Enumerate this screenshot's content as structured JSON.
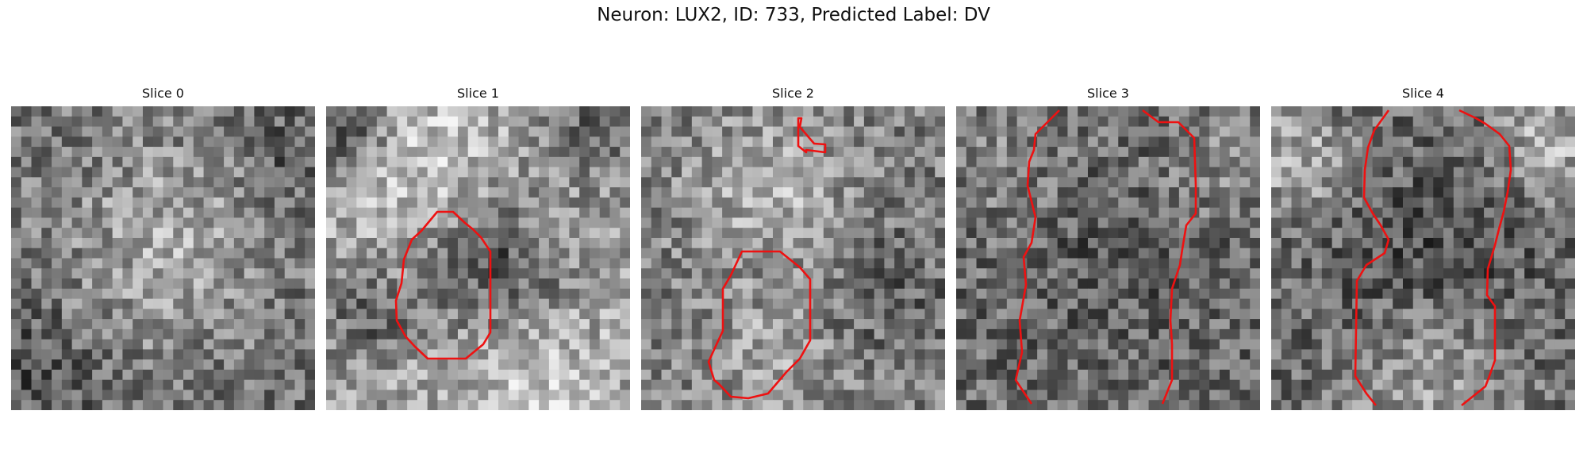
{
  "figure": {
    "title": "Neuron: LUX2, ID: 733, Predicted Label: DV"
  },
  "colors": {
    "contour": "#ee1111",
    "background": "#ffffff"
  },
  "slices": [
    {
      "title": "Slice 0"
    },
    {
      "title": "Slice 1"
    },
    {
      "title": "Slice 2"
    },
    {
      "title": "Slice 3"
    },
    {
      "title": "Slice 4"
    }
  ]
}
